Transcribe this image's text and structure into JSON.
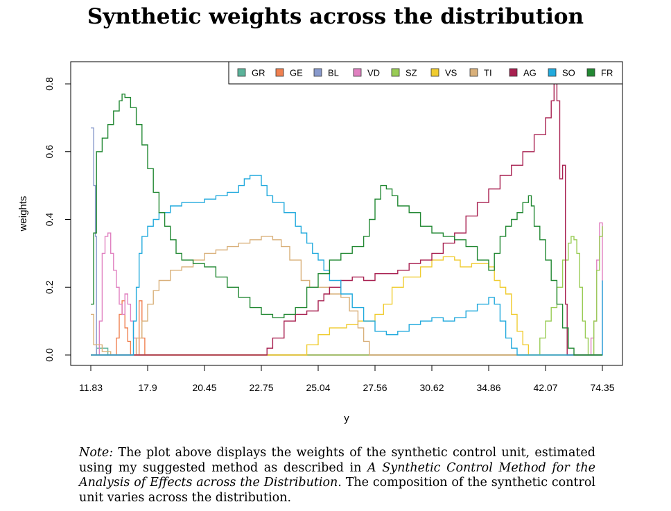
{
  "chart_data": {
    "type": "line",
    "step": true,
    "title": "Synthetic weights across the distribution",
    "xlabel": "y",
    "ylabel": "weights",
    "x_ticks": [
      "11.83",
      "17.9",
      "20.45",
      "22.75",
      "25.04",
      "27.56",
      "30.62",
      "34.86",
      "42.07",
      "74.35"
    ],
    "y_ticks": [
      "0.0",
      "0.2",
      "0.4",
      "0.6",
      "0.8"
    ],
    "ylim": [
      0,
      0.8
    ],
    "x_index_range": [
      0,
      9
    ],
    "legend_position": "top-right",
    "series": [
      {
        "name": "GR",
        "color": "#5BB39A",
        "points": [
          [
            0,
            0
          ],
          [
            0.1,
            0.02
          ],
          [
            0.3,
            0
          ],
          [
            9,
            0
          ]
        ]
      },
      {
        "name": "GE",
        "color": "#F08050",
        "points": [
          [
            0,
            0
          ],
          [
            0.4,
            0
          ],
          [
            0.45,
            0.05
          ],
          [
            0.5,
            0.12
          ],
          [
            0.55,
            0.16
          ],
          [
            0.6,
            0.08
          ],
          [
            0.65,
            0.04
          ],
          [
            0.7,
            0
          ],
          [
            0.8,
            0
          ],
          [
            0.85,
            0.16
          ],
          [
            0.9,
            0.05
          ],
          [
            0.95,
            0
          ],
          [
            9,
            0
          ]
        ]
      },
      {
        "name": "BL",
        "color": "#8899CC",
        "points": [
          [
            0,
            0.67
          ],
          [
            0.02,
            0.67
          ],
          [
            0.05,
            0.5
          ],
          [
            0.08,
            0.35
          ],
          [
            0.1,
            0
          ],
          [
            9,
            0
          ]
        ]
      },
      {
        "name": "VD",
        "color": "#E080C0",
        "points": [
          [
            0,
            0
          ],
          [
            0.1,
            0
          ],
          [
            0.15,
            0.1
          ],
          [
            0.2,
            0.3
          ],
          [
            0.25,
            0.35
          ],
          [
            0.3,
            0.36
          ],
          [
            0.35,
            0.3
          ],
          [
            0.4,
            0.25
          ],
          [
            0.45,
            0.2
          ],
          [
            0.5,
            0.15
          ],
          [
            0.55,
            0.12
          ],
          [
            0.6,
            0.18
          ],
          [
            0.65,
            0.15
          ],
          [
            0.7,
            0.1
          ],
          [
            0.75,
            0.05
          ],
          [
            0.8,
            0
          ],
          [
            8.7,
            0
          ],
          [
            8.8,
            0.05
          ],
          [
            8.85,
            0.1
          ],
          [
            8.9,
            0.28
          ],
          [
            8.95,
            0.39
          ],
          [
            9,
            0
          ]
        ]
      },
      {
        "name": "SZ",
        "color": "#99CC55",
        "points": [
          [
            0,
            0
          ],
          [
            7.8,
            0
          ],
          [
            7.9,
            0.05
          ],
          [
            8.0,
            0.1
          ],
          [
            8.1,
            0.14
          ],
          [
            8.2,
            0.2
          ],
          [
            8.3,
            0.28
          ],
          [
            8.4,
            0.33
          ],
          [
            8.45,
            0.35
          ],
          [
            8.5,
            0.34
          ],
          [
            8.55,
            0.3
          ],
          [
            8.6,
            0.2
          ],
          [
            8.65,
            0.1
          ],
          [
            8.7,
            0.05
          ],
          [
            8.75,
            0
          ],
          [
            8.85,
            0.1
          ],
          [
            8.9,
            0.25
          ],
          [
            8.95,
            0.35
          ],
          [
            9,
            0.38
          ]
        ]
      },
      {
        "name": "VS",
        "color": "#F0CC30",
        "points": [
          [
            0,
            0
          ],
          [
            3.2,
            0
          ],
          [
            3.5,
            0
          ],
          [
            3.8,
            0.03
          ],
          [
            4.0,
            0.06
          ],
          [
            4.2,
            0.08
          ],
          [
            4.5,
            0.09
          ],
          [
            4.7,
            0.1
          ],
          [
            5.0,
            0.12
          ],
          [
            5.15,
            0.15
          ],
          [
            5.3,
            0.2
          ],
          [
            5.5,
            0.23
          ],
          [
            5.8,
            0.26
          ],
          [
            6.0,
            0.28
          ],
          [
            6.2,
            0.29
          ],
          [
            6.4,
            0.28
          ],
          [
            6.5,
            0.26
          ],
          [
            6.7,
            0.27
          ],
          [
            7.0,
            0.26
          ],
          [
            7.1,
            0.22
          ],
          [
            7.2,
            0.2
          ],
          [
            7.3,
            0.18
          ],
          [
            7.4,
            0.12
          ],
          [
            7.5,
            0.07
          ],
          [
            7.6,
            0.03
          ],
          [
            7.7,
            0
          ],
          [
            9,
            0
          ]
        ]
      },
      {
        "name": "TI",
        "color": "#D9B07A",
        "points": [
          [
            0,
            0.12
          ],
          [
            0.05,
            0.03
          ],
          [
            0.2,
            0.01
          ],
          [
            0.35,
            0
          ],
          [
            0.7,
            0
          ],
          [
            0.8,
            0.05
          ],
          [
            0.9,
            0.1
          ],
          [
            1.0,
            0.15
          ],
          [
            1.1,
            0.19
          ],
          [
            1.2,
            0.22
          ],
          [
            1.4,
            0.25
          ],
          [
            1.6,
            0.26
          ],
          [
            1.8,
            0.28
          ],
          [
            2.0,
            0.3
          ],
          [
            2.2,
            0.31
          ],
          [
            2.4,
            0.32
          ],
          [
            2.6,
            0.33
          ],
          [
            2.8,
            0.34
          ],
          [
            3.0,
            0.35
          ],
          [
            3.2,
            0.34
          ],
          [
            3.35,
            0.32
          ],
          [
            3.5,
            0.28
          ],
          [
            3.7,
            0.22
          ],
          [
            3.85,
            0.2
          ],
          [
            4.0,
            0.2
          ],
          [
            4.2,
            0.18
          ],
          [
            4.4,
            0.17
          ],
          [
            4.55,
            0.13
          ],
          [
            4.7,
            0.08
          ],
          [
            4.8,
            0.04
          ],
          [
            4.9,
            0
          ],
          [
            9,
            0
          ]
        ]
      },
      {
        "name": "AG",
        "color": "#A82050",
        "points": [
          [
            0,
            0
          ],
          [
            3.05,
            0
          ],
          [
            3.1,
            0.02
          ],
          [
            3.2,
            0.05
          ],
          [
            3.4,
            0.1
          ],
          [
            3.6,
            0.12
          ],
          [
            3.8,
            0.13
          ],
          [
            4.0,
            0.16
          ],
          [
            4.1,
            0.18
          ],
          [
            4.2,
            0.2
          ],
          [
            4.4,
            0.22
          ],
          [
            4.6,
            0.23
          ],
          [
            4.8,
            0.22
          ],
          [
            5.0,
            0.24
          ],
          [
            5.2,
            0.24
          ],
          [
            5.4,
            0.25
          ],
          [
            5.6,
            0.27
          ],
          [
            5.8,
            0.28
          ],
          [
            6.0,
            0.3
          ],
          [
            6.2,
            0.33
          ],
          [
            6.4,
            0.36
          ],
          [
            6.6,
            0.41
          ],
          [
            6.8,
            0.45
          ],
          [
            7.0,
            0.49
          ],
          [
            7.2,
            0.53
          ],
          [
            7.4,
            0.56
          ],
          [
            7.6,
            0.6
          ],
          [
            7.8,
            0.65
          ],
          [
            8.0,
            0.7
          ],
          [
            8.1,
            0.75
          ],
          [
            8.15,
            0.81
          ],
          [
            8.2,
            0.75
          ],
          [
            8.25,
            0.52
          ],
          [
            8.3,
            0.56
          ],
          [
            8.35,
            0.15
          ],
          [
            8.38,
            0
          ],
          [
            9,
            0
          ]
        ]
      },
      {
        "name": "SO",
        "color": "#22AADD",
        "points": [
          [
            0,
            0
          ],
          [
            0.7,
            0
          ],
          [
            0.75,
            0.1
          ],
          [
            0.8,
            0.2
          ],
          [
            0.85,
            0.3
          ],
          [
            0.9,
            0.35
          ],
          [
            1.0,
            0.38
          ],
          [
            1.1,
            0.4
          ],
          [
            1.2,
            0.42
          ],
          [
            1.4,
            0.44
          ],
          [
            1.6,
            0.45
          ],
          [
            1.8,
            0.45
          ],
          [
            2.0,
            0.46
          ],
          [
            2.2,
            0.47
          ],
          [
            2.4,
            0.48
          ],
          [
            2.6,
            0.5
          ],
          [
            2.7,
            0.52
          ],
          [
            2.8,
            0.53
          ],
          [
            3.0,
            0.5
          ],
          [
            3.1,
            0.47
          ],
          [
            3.2,
            0.45
          ],
          [
            3.4,
            0.42
          ],
          [
            3.6,
            0.38
          ],
          [
            3.7,
            0.36
          ],
          [
            3.8,
            0.33
          ],
          [
            3.9,
            0.3
          ],
          [
            4.0,
            0.28
          ],
          [
            4.1,
            0.25
          ],
          [
            4.2,
            0.22
          ],
          [
            4.4,
            0.18
          ],
          [
            4.6,
            0.14
          ],
          [
            4.8,
            0.1
          ],
          [
            5.0,
            0.07
          ],
          [
            5.2,
            0.06
          ],
          [
            5.4,
            0.07
          ],
          [
            5.6,
            0.09
          ],
          [
            5.8,
            0.1
          ],
          [
            6.0,
            0.11
          ],
          [
            6.2,
            0.1
          ],
          [
            6.4,
            0.11
          ],
          [
            6.6,
            0.13
          ],
          [
            6.8,
            0.15
          ],
          [
            7.0,
            0.17
          ],
          [
            7.1,
            0.15
          ],
          [
            7.2,
            0.1
          ],
          [
            7.3,
            0.05
          ],
          [
            7.4,
            0.02
          ],
          [
            7.5,
            0
          ],
          [
            8.95,
            0
          ],
          [
            9,
            0.22
          ]
        ]
      },
      {
        "name": "FR",
        "color": "#228833",
        "points": [
          [
            0,
            0.15
          ],
          [
            0.05,
            0.36
          ],
          [
            0.1,
            0.6
          ],
          [
            0.2,
            0.64
          ],
          [
            0.3,
            0.68
          ],
          [
            0.4,
            0.72
          ],
          [
            0.5,
            0.75
          ],
          [
            0.55,
            0.77
          ],
          [
            0.6,
            0.76
          ],
          [
            0.7,
            0.73
          ],
          [
            0.8,
            0.68
          ],
          [
            0.9,
            0.62
          ],
          [
            1.0,
            0.55
          ],
          [
            1.1,
            0.48
          ],
          [
            1.2,
            0.42
          ],
          [
            1.3,
            0.38
          ],
          [
            1.4,
            0.34
          ],
          [
            1.5,
            0.3
          ],
          [
            1.6,
            0.28
          ],
          [
            1.8,
            0.27
          ],
          [
            2.0,
            0.26
          ],
          [
            2.2,
            0.23
          ],
          [
            2.4,
            0.2
          ],
          [
            2.6,
            0.17
          ],
          [
            2.8,
            0.14
          ],
          [
            3.0,
            0.12
          ],
          [
            3.2,
            0.11
          ],
          [
            3.4,
            0.12
          ],
          [
            3.6,
            0.14
          ],
          [
            3.8,
            0.2
          ],
          [
            4.0,
            0.24
          ],
          [
            4.2,
            0.28
          ],
          [
            4.4,
            0.3
          ],
          [
            4.6,
            0.32
          ],
          [
            4.8,
            0.35
          ],
          [
            4.9,
            0.4
          ],
          [
            5.0,
            0.46
          ],
          [
            5.1,
            0.5
          ],
          [
            5.2,
            0.49
          ],
          [
            5.3,
            0.47
          ],
          [
            5.4,
            0.44
          ],
          [
            5.6,
            0.42
          ],
          [
            5.8,
            0.38
          ],
          [
            6.0,
            0.36
          ],
          [
            6.2,
            0.35
          ],
          [
            6.4,
            0.34
          ],
          [
            6.6,
            0.32
          ],
          [
            6.8,
            0.28
          ],
          [
            7.0,
            0.25
          ],
          [
            7.1,
            0.3
          ],
          [
            7.2,
            0.35
          ],
          [
            7.3,
            0.38
          ],
          [
            7.4,
            0.4
          ],
          [
            7.5,
            0.42
          ],
          [
            7.6,
            0.45
          ],
          [
            7.7,
            0.47
          ],
          [
            7.75,
            0.44
          ],
          [
            7.8,
            0.38
          ],
          [
            7.9,
            0.34
          ],
          [
            8.0,
            0.28
          ],
          [
            8.1,
            0.22
          ],
          [
            8.2,
            0.15
          ],
          [
            8.3,
            0.08
          ],
          [
            8.4,
            0.02
          ],
          [
            8.5,
            0
          ],
          [
            9,
            0
          ]
        ]
      }
    ]
  },
  "note": {
    "label": "Note:",
    "text1": " The plot above displays the weights of the synthetic control unit, estimated using my suggested method as described in ",
    "citation": "A Synthetic Control Method for the Analysis of Effects across the Distribution",
    "text2": ". The composition of the synthetic control unit varies across the distribution."
  }
}
